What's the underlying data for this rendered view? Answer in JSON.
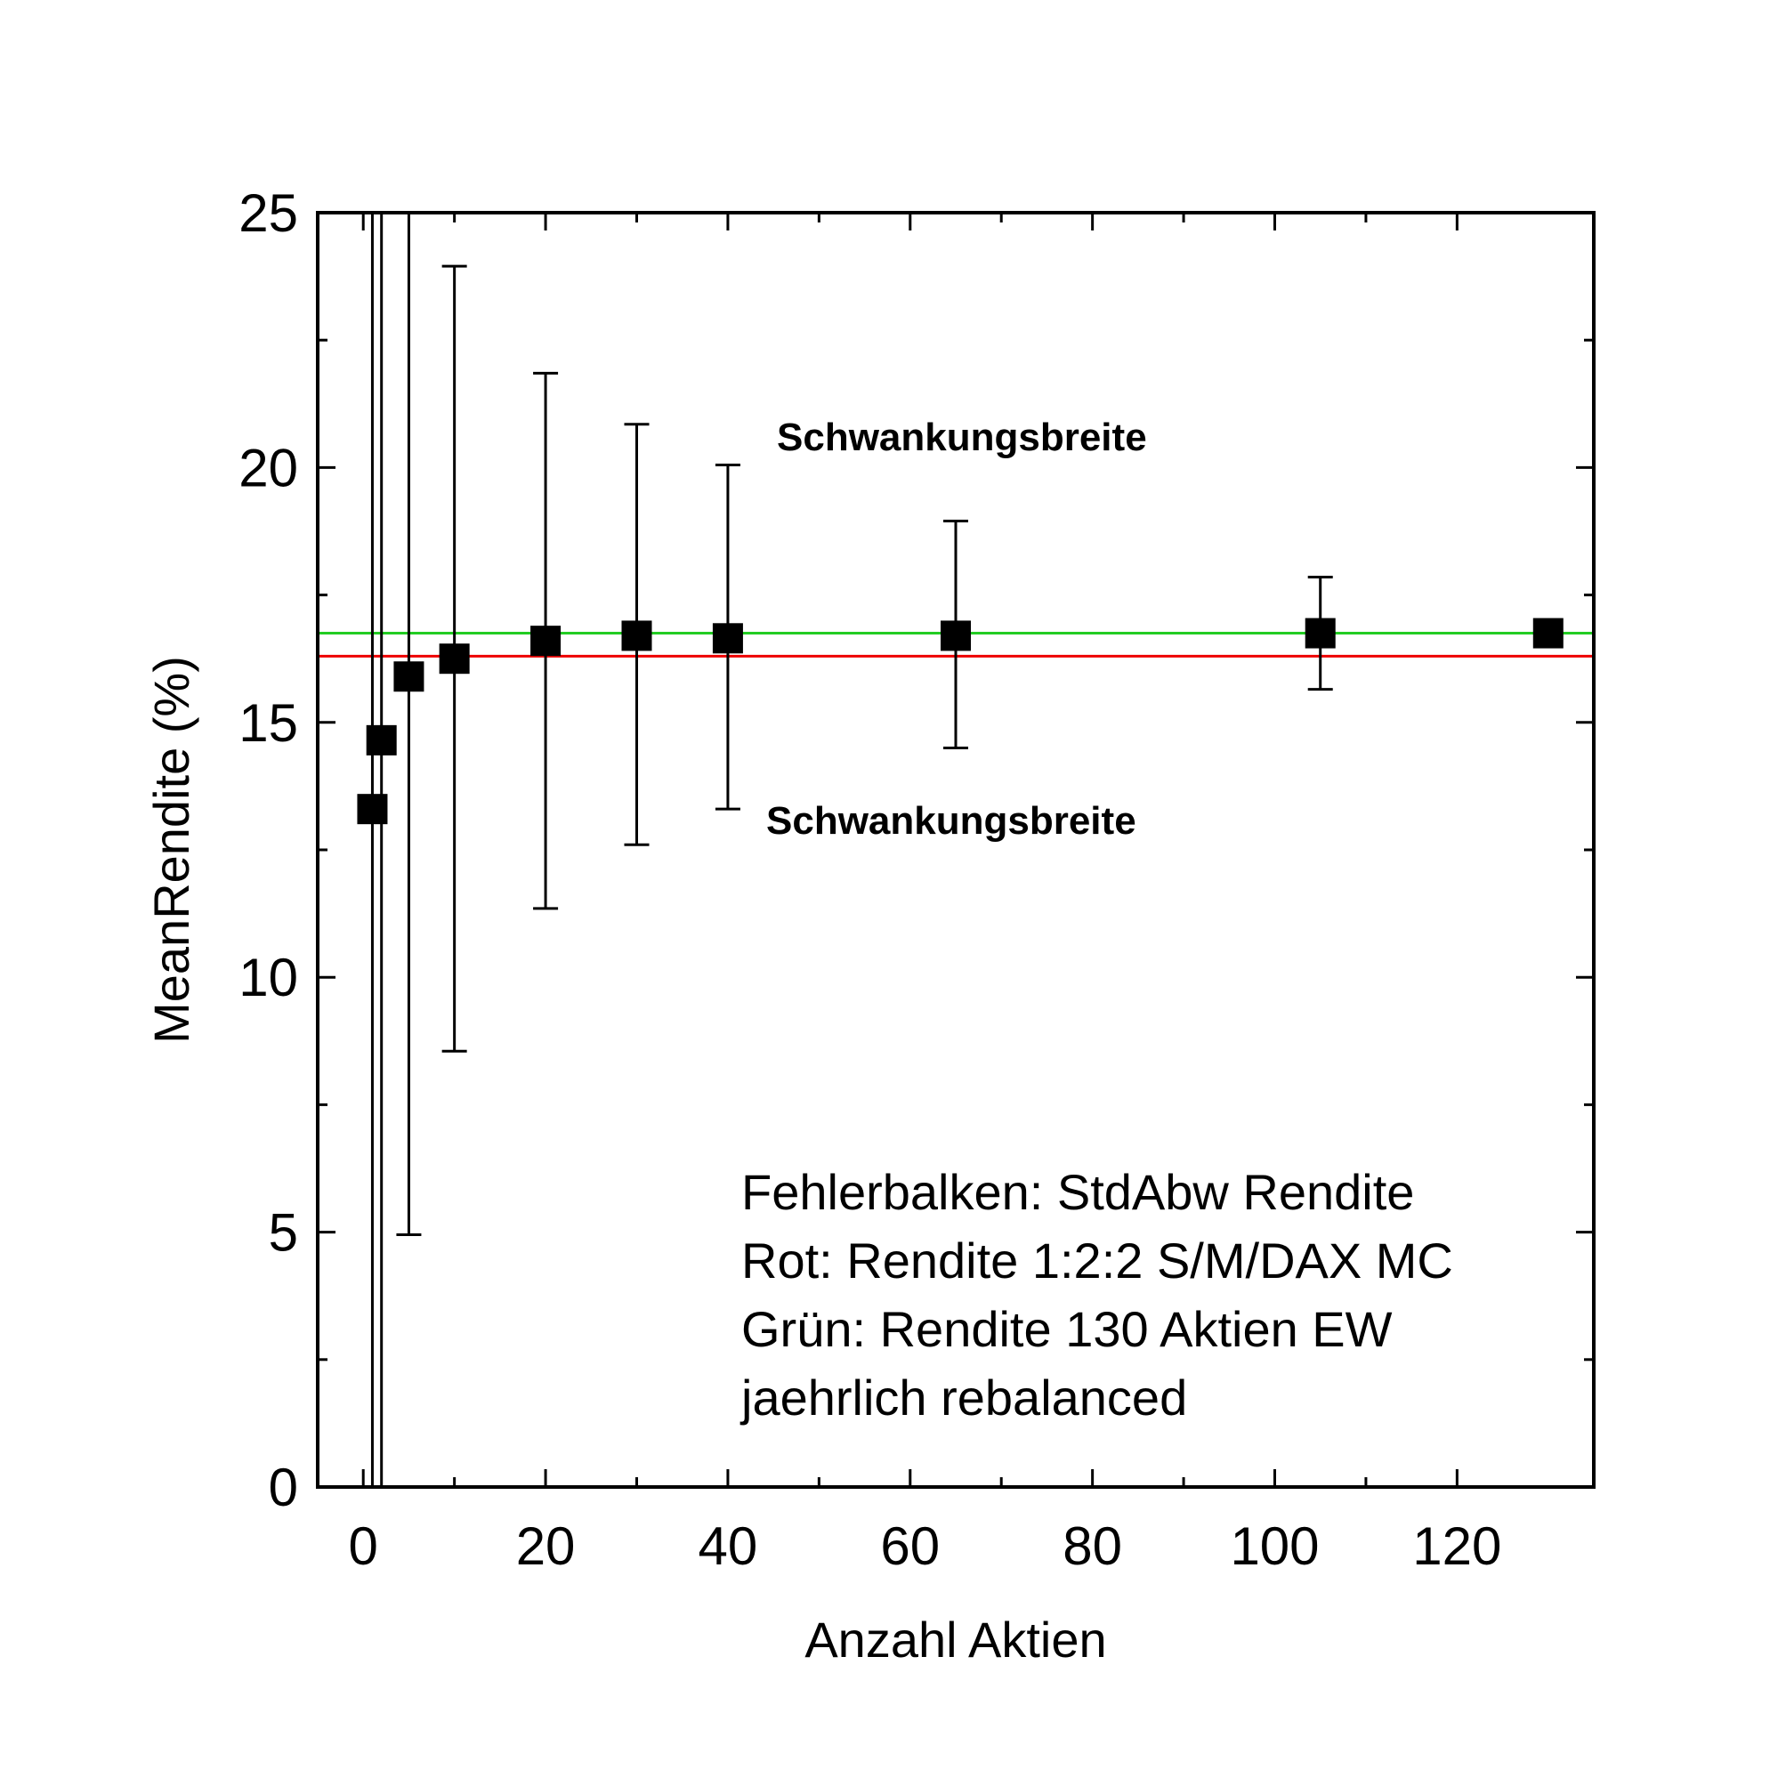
{
  "chart_data": {
    "type": "scatter",
    "title": "",
    "xlabel": "Anzahl Aktien",
    "ylabel": "MeanRendite (%)",
    "xlim": [
      -5,
      135
    ],
    "ylim": [
      0,
      25
    ],
    "x_ticks": [
      0,
      20,
      40,
      60,
      80,
      100,
      120
    ],
    "y_ticks": [
      0,
      5,
      10,
      15,
      20,
      25
    ],
    "grid": false,
    "legend": "none",
    "series": [
      {
        "marker": "square",
        "color": "#000000",
        "points": [
          {
            "x": 1,
            "y": 13.3,
            "err_low": 0,
            "err_high": 25
          },
          {
            "x": 2,
            "y": 14.65,
            "err_low": 0,
            "err_high": 25
          },
          {
            "x": 5,
            "y": 15.9,
            "err_low": 4.95,
            "err_high": 25
          },
          {
            "x": 10,
            "y": 16.25,
            "err_low": 8.55,
            "err_high": 23.95
          },
          {
            "x": 20,
            "y": 16.6,
            "err_low": 11.35,
            "err_high": 21.85
          },
          {
            "x": 30,
            "y": 16.7,
            "err_low": 12.6,
            "err_high": 20.85
          },
          {
            "x": 40,
            "y": 16.65,
            "err_low": 13.3,
            "err_high": 20.05
          },
          {
            "x": 65,
            "y": 16.7,
            "err_low": 14.5,
            "err_high": 18.95
          },
          {
            "x": 105,
            "y": 16.75,
            "err_low": 15.65,
            "err_high": 17.85
          },
          {
            "x": 130,
            "y": 16.75,
            "err_low": 16.75,
            "err_high": 16.75
          }
        ]
      }
    ],
    "reference_lines": [
      {
        "y": 16.75,
        "color": "#22cc22"
      },
      {
        "y": 16.3,
        "color": "#ee0000"
      }
    ],
    "annotations": {
      "upper": "Schwankungsbreite",
      "lower": "Schwankungsbreite",
      "note": [
        "Fehlerbalken: StdAbw Rendite",
        "Rot: Rendite 1:2:2 S/M/DAX MC",
        "Grün: Rendite 130 Aktien EW",
        "jaehrlich rebalanced"
      ]
    }
  }
}
